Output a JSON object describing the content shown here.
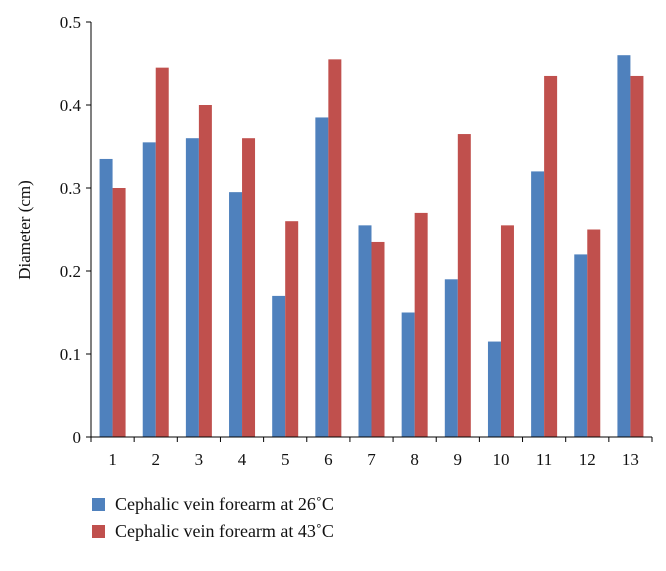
{
  "chart_data": {
    "type": "bar",
    "title": "",
    "xlabel": "",
    "ylabel": "Diameter (cm)",
    "ylim": [
      0,
      0.5
    ],
    "yticks": [
      0,
      0.1,
      0.2,
      0.3,
      0.4,
      0.5
    ],
    "ytick_labels": [
      "0",
      "0.1",
      "0.2",
      "0.3",
      "0.4",
      "0.5"
    ],
    "grid": false,
    "legend_position": "bottom-left",
    "categories": [
      "1",
      "2",
      "3",
      "4",
      "5",
      "6",
      "7",
      "8",
      "9",
      "10",
      "11",
      "12",
      "13"
    ],
    "series": [
      {
        "name": "Cephalic vein forearm at 26˚C",
        "color": "#4f81bd",
        "values": [
          0.335,
          0.355,
          0.36,
          0.295,
          0.17,
          0.385,
          0.255,
          0.15,
          0.19,
          0.115,
          0.32,
          0.22,
          0.46
        ]
      },
      {
        "name": "Cephalic vein forearm at 43˚C",
        "color": "#c0504d",
        "values": [
          0.3,
          0.445,
          0.4,
          0.36,
          0.26,
          0.455,
          0.235,
          0.27,
          0.365,
          0.255,
          0.435,
          0.25,
          0.435
        ]
      }
    ]
  }
}
